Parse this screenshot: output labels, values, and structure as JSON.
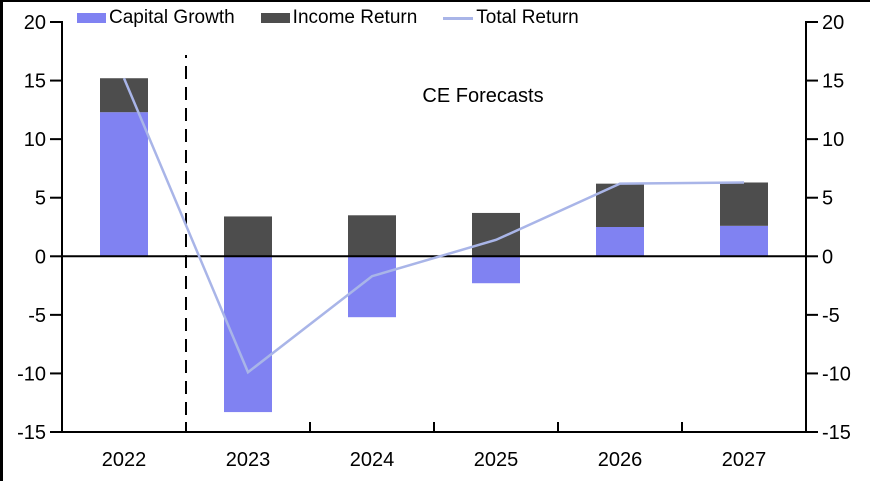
{
  "frame": {
    "border_color": "#000000",
    "background": "#ffffff"
  },
  "legend": {
    "items": [
      {
        "label": "Capital Growth",
        "type": "bar",
        "color": "#8082F2"
      },
      {
        "label": "Income Return",
        "type": "bar",
        "color": "#4D4D4D"
      },
      {
        "label": "Total Return",
        "type": "line",
        "color": "#A9B5E8"
      }
    ]
  },
  "annotation": {
    "text": "CE Forecasts"
  },
  "chart_data": {
    "type": "bar",
    "subtype": "stacked bars with line overlay",
    "categories": [
      "2022",
      "2023",
      "2024",
      "2025",
      "2026",
      "2027"
    ],
    "series": [
      {
        "name": "Capital Growth",
        "type": "bar",
        "color": "#8082F2",
        "values": [
          12.3,
          -13.3,
          -5.2,
          -2.3,
          2.5,
          2.6
        ]
      },
      {
        "name": "Income Return",
        "type": "bar",
        "color": "#4D4D4D",
        "values": [
          2.9,
          3.4,
          3.5,
          3.7,
          3.7,
          3.7
        ]
      },
      {
        "name": "Total Return",
        "type": "line",
        "color": "#A9B5E8",
        "values": [
          15.2,
          -9.9,
          -1.7,
          1.4,
          6.2,
          6.3
        ]
      }
    ],
    "title": "",
    "xlabel": "",
    "ylabel": "",
    "ylim": [
      -15,
      20
    ],
    "y_ticks": [
      20,
      15,
      10,
      5,
      0,
      -5,
      -10,
      -15
    ],
    "y_axis_sides": [
      "left",
      "right"
    ],
    "grid": false,
    "legend_position": "top",
    "forecast_divider_after_category": "2022",
    "annotation": "CE Forecasts",
    "axis_color": "#000000"
  }
}
